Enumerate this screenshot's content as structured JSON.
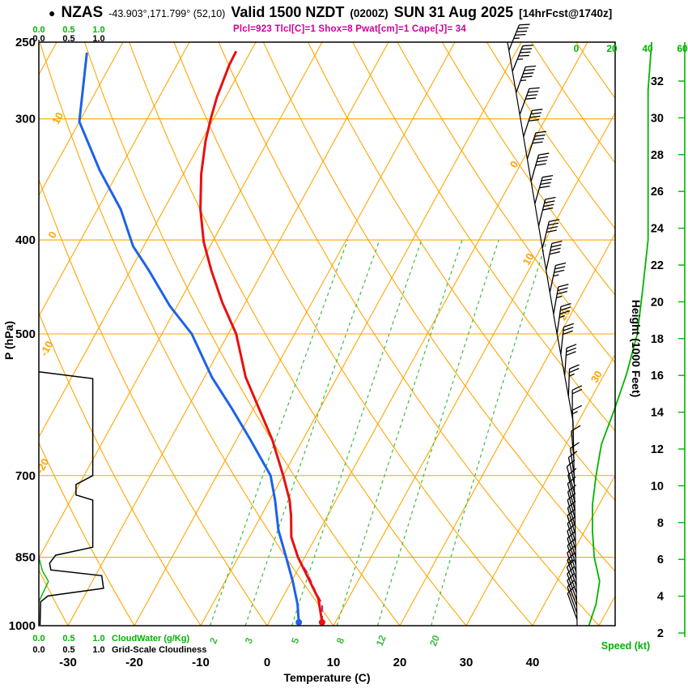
{
  "header": {
    "bullet": "●",
    "station": "NZAS",
    "coords": "-43.903°,171.799° (52,10)",
    "valid_main": "Valid 1500 NZDT",
    "valid_z": "(0200Z)",
    "valid_date": "SUN 31 Aug 2025",
    "fcst": "[14hrFcst@1740z]",
    "params": "Plcl=923 Tlcl[C]=1 Shox=8 Pwat[cm]=1 Cape[J]= 34"
  },
  "axes": {
    "pressure_label": "P (hPa)",
    "pressure_ticks": [
      250,
      300,
      400,
      500,
      700,
      850,
      1000
    ],
    "temp_label": "Temperature (C)",
    "temp_ticks": [
      -30,
      -20,
      -10,
      0,
      10,
      20,
      30,
      40
    ],
    "height_label": "Height (1000 Feet)",
    "height_ticks": [
      32,
      30,
      28,
      26,
      24,
      22,
      20,
      18,
      16,
      14,
      12,
      10,
      8,
      6,
      4,
      2
    ],
    "speed_label": "Speed (kt)",
    "speed_ticks": [
      0,
      20,
      40,
      60
    ],
    "cloudwater_scale": [
      "0.0",
      "0.5",
      "1.0"
    ],
    "cloudwater_label": "CloudWater (g/Kg)",
    "cloudiness_label": "Grid-Scale Cloudiness"
  },
  "chart_data": {
    "type": "line",
    "title": "Skew-T / Log-P forecast sounding",
    "xlabel": "Temperature (C)",
    "ylabel": "P (hPa)",
    "y2label": "Height (1000 Feet)",
    "pressure_range_hpa": [
      1000,
      250
    ],
    "temp_axis_range_c": [
      -35,
      45
    ],
    "skew_grid": {
      "isotherm_step_c": 10,
      "adiabat_step_c": 10,
      "mixing_ratio_lines_gkg": [
        2,
        3,
        5,
        8,
        12,
        20
      ],
      "isotherm_line_labels": [
        0,
        10,
        20,
        30
      ],
      "adiabat_line_labels": [
        10,
        0,
        -10,
        -20
      ]
    },
    "series": {
      "temperature_c": [
        [
          992,
          8
        ],
        [
          938,
          5.5
        ],
        [
          850,
          -1
        ],
        [
          810,
          -3.7
        ],
        [
          770,
          -5.5
        ],
        [
          742,
          -7
        ],
        [
          700,
          -10
        ],
        [
          643,
          -14.6
        ],
        [
          596,
          -19.3
        ],
        [
          554,
          -23.8
        ],
        [
          500,
          -28.8
        ],
        [
          464,
          -33.5
        ],
        [
          430,
          -37.8
        ],
        [
          402,
          -41.3
        ],
        [
          372,
          -44.5
        ],
        [
          342,
          -47.3
        ],
        [
          316,
          -49.4
        ],
        [
          299,
          -50.5
        ],
        [
          285,
          -51.3
        ],
        [
          264,
          -52.1
        ],
        [
          256,
          -52.2
        ]
      ],
      "dewpoint_c": [
        [
          992,
          4.5
        ],
        [
          950,
          2.8
        ],
        [
          900,
          0.2
        ],
        [
          850,
          -2.8
        ],
        [
          797,
          -6.2
        ],
        [
          742,
          -9.2
        ],
        [
          700,
          -11.9
        ],
        [
          643,
          -17.9
        ],
        [
          596,
          -23.4
        ],
        [
          554,
          -28.9
        ],
        [
          500,
          -35.5
        ],
        [
          468,
          -41.1
        ],
        [
          430,
          -47.2
        ],
        [
          406,
          -51.6
        ],
        [
          372,
          -56.5
        ],
        [
          339,
          -62.9
        ],
        [
          302,
          -70
        ],
        [
          257,
          -74.5
        ]
      ],
      "parcel_c": [
        [
          992,
          8
        ],
        [
          950,
          6.5
        ],
        [
          923,
          4.5
        ],
        [
          880,
          1.5
        ],
        [
          845,
          -1.5
        ]
      ],
      "cloud_fraction": [
        [
          547,
          0
        ],
        [
          556,
          0.9
        ],
        [
          700,
          0.9
        ],
        [
          715,
          0.62
        ],
        [
          733,
          0.62
        ],
        [
          742,
          0.9
        ],
        [
          830,
          0.9
        ],
        [
          846,
          0.28
        ],
        [
          862,
          0.18
        ],
        [
          876,
          0.2
        ],
        [
          888,
          1.05
        ],
        [
          915,
          1.08
        ],
        [
          932,
          0.15
        ],
        [
          945,
          0.03
        ],
        [
          998,
          0.02
        ]
      ],
      "cloudwater_gkg": [
        [
          850,
          0
        ],
        [
          878,
          0.06
        ],
        [
          900,
          0.16
        ],
        [
          922,
          0.08
        ],
        [
          945,
          0
        ]
      ],
      "wind_speed_kt": [
        [
          250,
          42
        ],
        [
          280,
          40
        ],
        [
          320,
          40
        ],
        [
          360,
          40
        ],
        [
          400,
          40
        ],
        [
          450,
          37
        ],
        [
          500,
          34
        ],
        [
          550,
          28
        ],
        [
          600,
          21
        ],
        [
          650,
          14
        ],
        [
          700,
          11
        ],
        [
          750,
          9
        ],
        [
          800,
          9
        ],
        [
          850,
          10
        ],
        [
          900,
          13
        ],
        [
          950,
          11
        ],
        [
          1000,
          7
        ]
      ],
      "wind_barbs": [
        [
          255,
          45,
          22
        ],
        [
          268,
          44,
          22
        ],
        [
          282,
          43,
          20
        ],
        [
          297,
          42,
          20
        ],
        [
          313,
          41,
          18
        ],
        [
          330,
          40,
          18
        ],
        [
          348,
          40,
          16
        ],
        [
          367,
          40,
          16
        ],
        [
          387,
          40,
          14
        ],
        [
          408,
          39,
          14
        ],
        [
          430,
          38,
          12
        ],
        [
          453,
          37,
          12
        ],
        [
          477,
          35,
          10
        ],
        [
          500,
          34,
          8
        ],
        [
          525,
          31,
          6
        ],
        [
          552,
          28,
          4
        ],
        [
          580,
          24,
          2
        ],
        [
          610,
          20,
          0
        ],
        [
          640,
          16,
          -2
        ],
        [
          672,
          12,
          -5
        ],
        [
          700,
          11,
          -8
        ],
        [
          715,
          10,
          -12
        ],
        [
          730,
          10,
          -16
        ],
        [
          745,
          9,
          -14
        ],
        [
          760,
          9,
          -15
        ],
        [
          775,
          9,
          -15
        ],
        [
          790,
          9,
          -16
        ],
        [
          805,
          9,
          -16
        ],
        [
          820,
          8,
          -17
        ],
        [
          835,
          8,
          -17
        ],
        [
          850,
          10,
          -18
        ],
        [
          865,
          10,
          -18
        ],
        [
          880,
          11,
          -18
        ],
        [
          895,
          12,
          -19
        ],
        [
          910,
          13,
          -19
        ],
        [
          925,
          12,
          -20
        ],
        [
          940,
          11,
          -20
        ],
        [
          955,
          10,
          -20
        ],
        [
          970,
          9,
          -20
        ],
        [
          985,
          8,
          -20
        ]
      ]
    }
  },
  "colors": {
    "grid_orange": "#ffa500",
    "mixing_green": "#3dbb3d",
    "accent_green": "#00b400",
    "temperature_red": "#e81010",
    "dewpoint_blue": "#1c62e8",
    "parcel_magenta": "#cc2277",
    "params_magenta": "#cc0099",
    "black": "#000000"
  }
}
